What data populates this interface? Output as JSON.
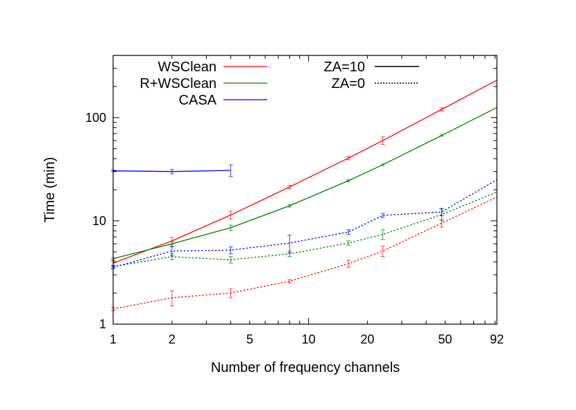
{
  "chart_data": {
    "type": "line",
    "title": "",
    "xlabel": "Number of frequency channels",
    "ylabel": "Time (min)",
    "xscale": "log",
    "yscale": "log",
    "xlim": [
      1,
      92
    ],
    "ylim": [
      1,
      400
    ],
    "x_ticks": [
      1,
      2,
      5,
      10,
      20,
      50,
      92
    ],
    "x_tick_labels": [
      "1",
      "2",
      "5",
      "10",
      "20",
      "50",
      "92"
    ],
    "y_ticks": [
      1,
      10,
      100
    ],
    "y_tick_labels": [
      "1",
      "10",
      "100"
    ],
    "grid": false,
    "legend_placement": "top-left",
    "legend_methods": [
      {
        "name": "WSClean",
        "color": "#ff0000"
      },
      {
        "name": "R+WSClean",
        "color": "#008000"
      },
      {
        "name": "CASA",
        "color": "#0000ff"
      }
    ],
    "legend_styles": [
      {
        "name": "ZA=10",
        "style": "solid"
      },
      {
        "name": "ZA=0",
        "style": "dotted"
      }
    ],
    "series": [
      {
        "method": "WSClean",
        "za": "ZA=10",
        "color": "#ff0000",
        "style": "solid",
        "x": [
          1,
          2,
          4,
          8,
          16,
          24,
          48,
          92
        ],
        "y": [
          3.9,
          6.4,
          11.4,
          21.3,
          40.5,
          60,
          120,
          230
        ],
        "err": [
          0.2,
          0.5,
          1.0,
          0.8,
          1.5,
          5,
          4,
          0
        ]
      },
      {
        "method": "R+WSClean",
        "za": "ZA=10",
        "color": "#008000",
        "style": "solid",
        "x": [
          1,
          2,
          4,
          8,
          16,
          24,
          48,
          92
        ],
        "y": [
          4.3,
          6.0,
          8.6,
          14,
          24.5,
          35,
          67,
          125
        ],
        "err": [
          0.1,
          0.3,
          0.5,
          0.4,
          0.6,
          0.8,
          1,
          0
        ]
      },
      {
        "method": "CASA",
        "za": "ZA=10",
        "color": "#0000ff",
        "style": "solid",
        "x": [
          1,
          2,
          4
        ],
        "y": [
          30.5,
          30,
          30.8
        ],
        "err": [
          0.5,
          1.5,
          4
        ]
      },
      {
        "method": "WSClean",
        "za": "ZA=0",
        "color": "#ff0000",
        "style": "dotted",
        "x": [
          1,
          2,
          4,
          8,
          16,
          24,
          48,
          92
        ],
        "y": [
          1.4,
          1.8,
          2.0,
          2.6,
          3.85,
          5.1,
          9.5,
          17
        ],
        "err": [
          0.05,
          0.3,
          0.2,
          0.1,
          0.3,
          0.6,
          0.8,
          0
        ]
      },
      {
        "method": "R+WSClean",
        "za": "ZA=0",
        "color": "#008000",
        "style": "dotted",
        "x": [
          1,
          2,
          4,
          8,
          16,
          24,
          48,
          92
        ],
        "y": [
          3.6,
          4.5,
          4.2,
          4.8,
          6.1,
          7.4,
          11.5,
          19
        ],
        "err": [
          0.1,
          0.3,
          0.3,
          0.3,
          0.3,
          0.8,
          1.5,
          0
        ]
      },
      {
        "method": "CASA",
        "za": "ZA=0",
        "color": "#0000ff",
        "style": "dotted",
        "x": [
          1,
          2,
          4,
          8,
          16,
          24,
          48,
          92
        ],
        "y": [
          3.55,
          5.1,
          5.2,
          6.1,
          7.8,
          11.3,
          12.2,
          25
        ],
        "err": [
          0.1,
          0.5,
          0.4,
          1.2,
          0.4,
          0.5,
          1.0,
          0
        ]
      }
    ]
  }
}
